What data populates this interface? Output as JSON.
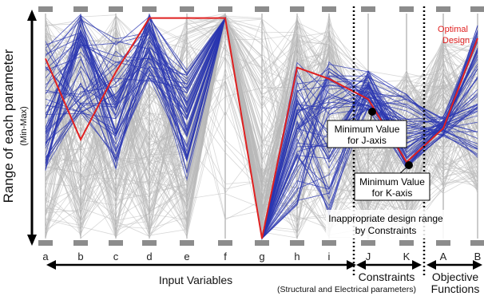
{
  "chart_data": {
    "type": "parallel_coordinates",
    "ylabel": "Range of each parameter",
    "ylabel_sub": "(Min-Max)",
    "axes": [
      "a",
      "b",
      "c",
      "d",
      "e",
      "f",
      "g",
      "h",
      "i",
      "J",
      "K",
      "A",
      "B"
    ],
    "groups": [
      {
        "name": "Input Variables",
        "axes": [
          "a",
          "b",
          "c",
          "d",
          "e",
          "f",
          "g",
          "h",
          "i"
        ]
      },
      {
        "name": "Constraints",
        "subtitle": "(Structural and Electrical parameters)",
        "axes": [
          "J",
          "K"
        ]
      },
      {
        "name": "Objective Functions",
        "axes": [
          "A",
          "B"
        ]
      }
    ],
    "value_range": [
      0,
      1
    ],
    "optimal_design": {
      "label": "Optimal Design",
      "color": "#e02020",
      "values": [
        0.8,
        0.44,
        0.74,
        0.98,
        0.98,
        0.98,
        0.0,
        0.76,
        0.71,
        0.62,
        0.34,
        0.49,
        0.89
      ]
    },
    "feasible_color": "#2a35b0",
    "infeasible_color": "#b8b8b8",
    "annotations": [
      {
        "id": "min-j",
        "text_line1": "Minimum Value",
        "text_line2": "for J-axis",
        "axis": "J",
        "value": 0.57
      },
      {
        "id": "min-k",
        "text_line1": "Minimum Value",
        "text_line2": "for K-axis",
        "axis": "K",
        "value": 0.3
      },
      {
        "id": "inappropriate",
        "text_line1": "Inappropriate design range",
        "text_line2": "by Constraints"
      }
    ]
  }
}
